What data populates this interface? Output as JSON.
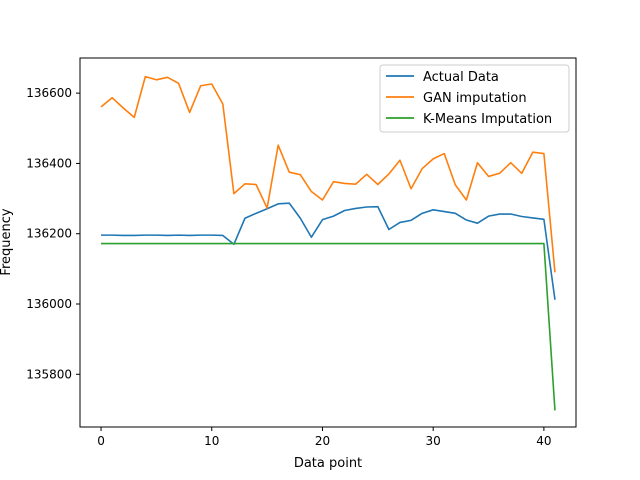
{
  "chart_data": {
    "type": "line",
    "xlabel": "Data point",
    "ylabel": "Frequency",
    "xlim": [
      -1.9,
      42.9
    ],
    "ylim": [
      135650,
      136700
    ],
    "xticks": [
      0,
      10,
      20,
      30,
      40
    ],
    "yticks": [
      135800,
      136000,
      136200,
      136400,
      136600
    ],
    "grid": false,
    "legend_position": "top-right",
    "series": [
      {
        "name": "Actual Data",
        "color": "#1f77b4",
        "x": [
          0,
          1,
          2,
          3,
          4,
          5,
          6,
          7,
          8,
          9,
          10,
          11,
          12,
          13,
          14,
          15,
          16,
          17,
          18,
          19,
          20,
          21,
          22,
          23,
          24,
          25,
          26,
          27,
          28,
          29,
          30,
          31,
          32,
          33,
          34,
          35,
          36,
          37,
          38,
          39,
          40,
          41
        ],
        "y": [
          136196,
          136196,
          136195,
          136195,
          136196,
          136196,
          136195,
          136196,
          136195,
          136196,
          136196,
          136195,
          136170,
          136244,
          136258,
          136271,
          136285,
          136287,
          136244,
          136190,
          136240,
          136250,
          136266,
          136272,
          136276,
          136277,
          136212,
          136232,
          136238,
          136258,
          136268,
          136263,
          136258,
          136239,
          136230,
          136250,
          136256,
          136256,
          136249,
          136245,
          136241,
          136012
        ]
      },
      {
        "name": "GAN imputation",
        "color": "#ff7f0e",
        "x": [
          0,
          1,
          2,
          3,
          4,
          5,
          6,
          7,
          8,
          9,
          10,
          11,
          12,
          13,
          14,
          15,
          16,
          17,
          18,
          19,
          20,
          21,
          22,
          23,
          24,
          25,
          26,
          27,
          28,
          29,
          30,
          31,
          32,
          33,
          34,
          35,
          36,
          37,
          38,
          39,
          40,
          41
        ],
        "y": [
          136561,
          136587,
          136558,
          136531,
          136647,
          136638,
          136645,
          136628,
          136545,
          136621,
          136626,
          136569,
          136314,
          136342,
          136340,
          136273,
          136452,
          136375,
          136368,
          136320,
          136296,
          136348,
          136343,
          136341,
          136369,
          136340,
          136370,
          136409,
          136328,
          136385,
          136413,
          136428,
          136339,
          136296,
          136402,
          136363,
          136372,
          136402,
          136372,
          136432,
          136428,
          136090
        ]
      },
      {
        "name": "K-Means Imputation",
        "color": "#2ca02c",
        "x": [
          0,
          1,
          2,
          3,
          4,
          5,
          6,
          7,
          8,
          9,
          10,
          11,
          12,
          13,
          14,
          15,
          16,
          17,
          18,
          19,
          20,
          21,
          22,
          23,
          24,
          25,
          26,
          27,
          28,
          29,
          30,
          31,
          32,
          33,
          34,
          35,
          36,
          37,
          38,
          39,
          40,
          41
        ],
        "y": [
          136172,
          136172,
          136172,
          136172,
          136172,
          136172,
          136172,
          136172,
          136172,
          136172,
          136172,
          136172,
          136172,
          136172,
          136172,
          136172,
          136172,
          136172,
          136172,
          136172,
          136172,
          136172,
          136172,
          136172,
          136172,
          136172,
          136172,
          136172,
          136172,
          136172,
          136172,
          136172,
          136172,
          136172,
          136172,
          136172,
          136172,
          136172,
          136172,
          136172,
          136172,
          135697
        ]
      }
    ]
  }
}
